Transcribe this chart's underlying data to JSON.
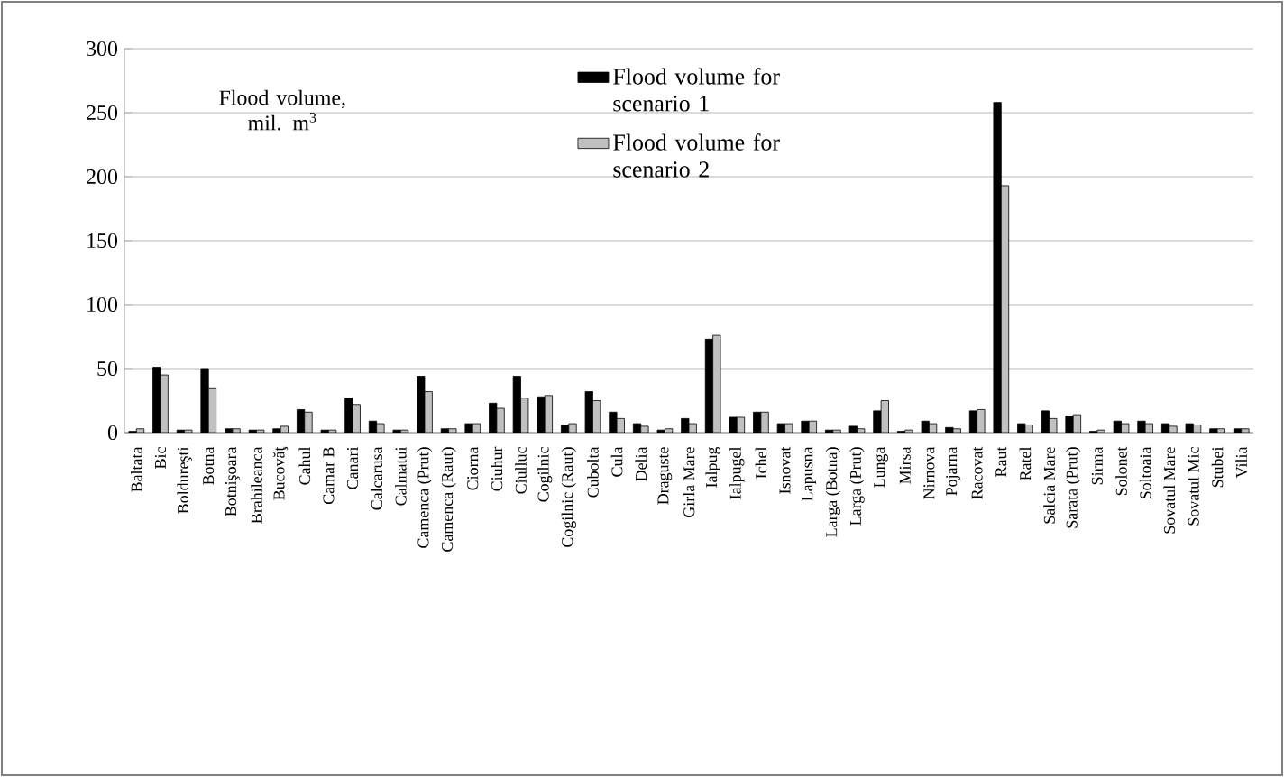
{
  "chart_data": {
    "type": "bar",
    "ylabel": "Flood volume, mil. m$^{3}$",
    "categories": [
      "Baltata",
      "Bic",
      "Boldureşti",
      "Botna",
      "Botnişoara",
      "Brahileanca",
      "Bucovăţ",
      "Cahul",
      "Camar B",
      "Canari",
      "Calcarusa",
      "Calmatui",
      "Camenca (Prut)",
      "Camenca (Raut)",
      "Ciorna",
      "Ciuhur",
      "Ciulluc",
      "Cogilnic",
      "Cogilnic (Raut)",
      "Cubolta",
      "Cula",
      "Delia",
      "Draguste",
      "Girla Mare",
      "Ialpug",
      "Ialpugel",
      "Ichel",
      "Isnovat",
      "Lapusna",
      "Larga (Botna)",
      "Larga (Prut)",
      "Lunga",
      "Mirsa",
      "Nirnova",
      "Pojarna",
      "Racovat",
      "Raut",
      "Ratel",
      "Salcia Mare",
      "Sarata (Prut)",
      "Sirma",
      "Solonet",
      "Soltoaia",
      "Sovatul Mare",
      "Sovatul Mic",
      "Stubei",
      "Vilia"
    ],
    "series": [
      {
        "name": "Flood volume for scenario 1",
        "color": "#000000",
        "values": [
          1,
          51,
          2,
          50,
          3,
          2,
          3,
          18,
          2,
          27,
          9,
          2,
          44,
          3,
          7,
          23,
          44,
          28,
          6,
          32,
          16,
          7,
          2,
          11,
          73,
          12,
          16,
          7,
          9,
          2,
          5,
          17,
          1,
          9,
          4,
          17,
          258,
          7,
          17,
          13,
          1,
          9,
          9,
          7,
          7,
          3,
          3
        ]
      },
      {
        "name": "Flood volume for scenario 2",
        "color": "#c0c0c0",
        "values": [
          3,
          45,
          2,
          35,
          3,
          2,
          5,
          16,
          2,
          22,
          7,
          2,
          32,
          3,
          7,
          19,
          27,
          29,
          7,
          25,
          11,
          5,
          3,
          7,
          76,
          12,
          16,
          7,
          9,
          2,
          3,
          25,
          2,
          7,
          3,
          18,
          193,
          6,
          11,
          14,
          2,
          7,
          7,
          5,
          6,
          3,
          3
        ]
      }
    ],
    "ylim": [
      0,
      300
    ],
    "yticks": [
      0,
      50,
      100,
      150,
      200,
      250,
      300
    ],
    "grid": "y",
    "legend": "top"
  }
}
